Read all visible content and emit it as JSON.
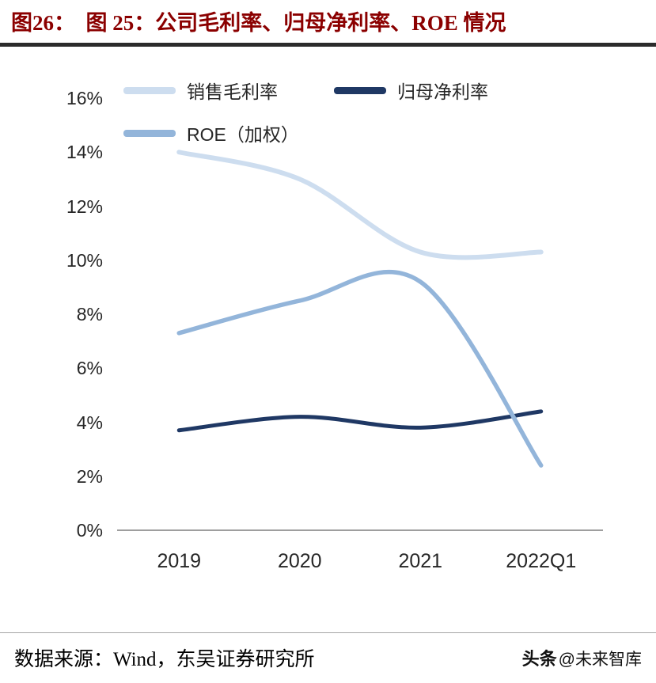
{
  "header": {
    "title": "图26：  图 25：公司毛利率、归母净利率、ROE 情况",
    "accent_color": "#8B0000",
    "rule_color": "#2b2b2b"
  },
  "chart_data": {
    "type": "line",
    "categories": [
      "2019",
      "2020",
      "2021",
      "2022Q1"
    ],
    "series": [
      {
        "name": "销售毛利率",
        "values": [
          14.0,
          13.0,
          10.3,
          10.3
        ],
        "color": "#CDDDEF"
      },
      {
        "name": "归母净利率",
        "values": [
          3.7,
          4.2,
          3.8,
          4.4
        ],
        "color": "#1F3864"
      },
      {
        "name": "ROE（加权）",
        "values": [
          7.3,
          8.5,
          9.2,
          2.4
        ],
        "color": "#93B5DA"
      }
    ],
    "ylim": [
      0,
      16
    ],
    "ytick_step": 2,
    "ytick_format": "percent",
    "smooth": true,
    "grid": false,
    "legend_position": "top-left",
    "axis_color": "#7f7f7f"
  },
  "footer": {
    "source": "数据来源：Wind，东吴证券研究所",
    "watermark_bold": "头条",
    "watermark_handle": "@未来智库"
  }
}
